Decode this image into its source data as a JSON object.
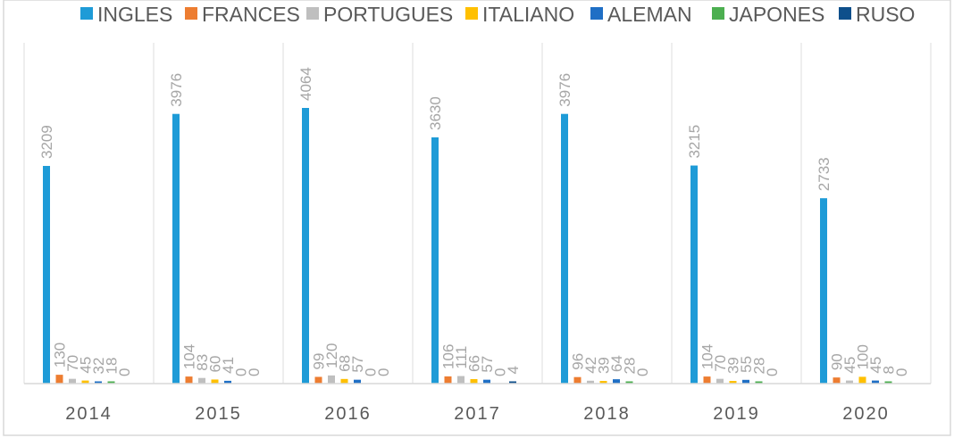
{
  "chart_data": {
    "type": "bar",
    "categories": [
      "2014",
      "2015",
      "2016",
      "2017",
      "2018",
      "2019",
      "2020"
    ],
    "series": [
      {
        "name": "INGLES",
        "color": "#1e9bd7",
        "values": [
          3209,
          3976,
          4064,
          3630,
          3976,
          3215,
          2733
        ]
      },
      {
        "name": "FRANCES",
        "color": "#ed7d31",
        "values": [
          130,
          104,
          99,
          106,
          96,
          104,
          90
        ]
      },
      {
        "name": "PORTUGUES",
        "color": "#bfbfbf",
        "values": [
          70,
          83,
          120,
          111,
          42,
          70,
          45
        ]
      },
      {
        "name": "ITALIANO",
        "color": "#ffc000",
        "values": [
          45,
          60,
          68,
          66,
          39,
          39,
          100
        ]
      },
      {
        "name": "ALEMAN",
        "color": "#1f6fc5",
        "values": [
          32,
          41,
          57,
          57,
          64,
          55,
          45
        ]
      },
      {
        "name": "JAPONES",
        "color": "#4caf50",
        "values": [
          18,
          0,
          0,
          0,
          28,
          28,
          8
        ]
      },
      {
        "name": "RUSO",
        "color": "#0e4f8b",
        "values": [
          0,
          0,
          0,
          4,
          0,
          0,
          0
        ]
      }
    ],
    "ylim": [
      0,
      4064
    ],
    "legend": "top",
    "grid": false,
    "category_separators": true
  }
}
